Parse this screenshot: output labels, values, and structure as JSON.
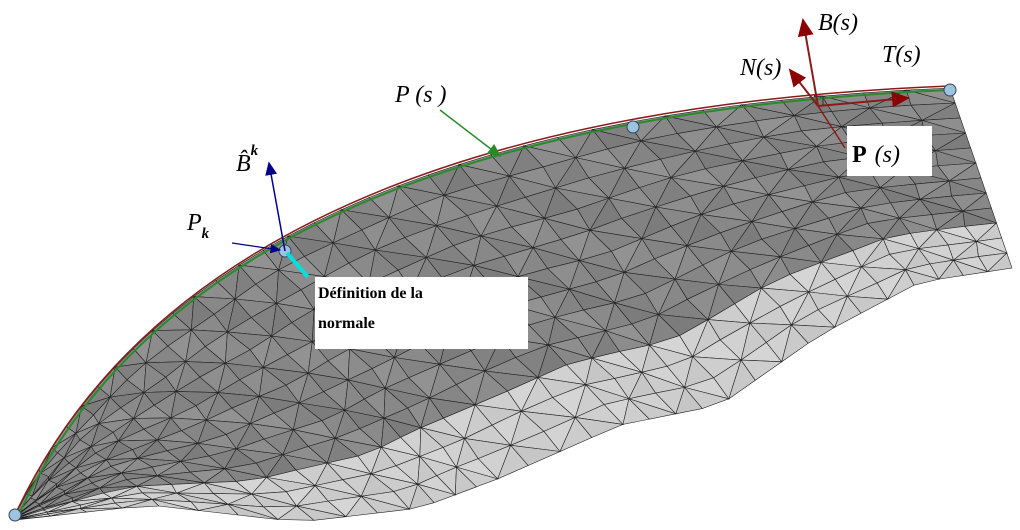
{
  "labels": {
    "curve": "P (s )",
    "binormal_k": {
      "base": "B̂",
      "sup": "k"
    },
    "point_k": {
      "base": "P",
      "sub": "k"
    },
    "normal_definition": [
      "Définition de la",
      "normale"
    ],
    "binormal": "B(s)",
    "normal": "N(s)",
    "tangent": "T(s)",
    "point": {
      "base": "P",
      "arg": "(s)"
    }
  }
}
